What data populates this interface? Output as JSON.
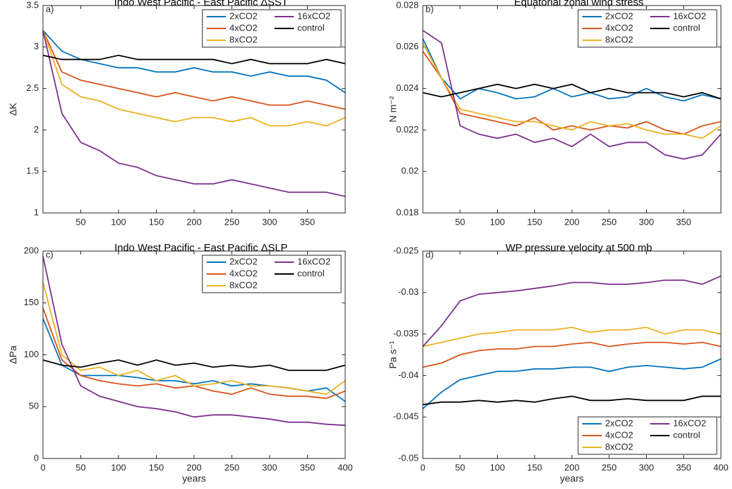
{
  "chart_data": [
    {
      "type": "line",
      "label": "a)",
      "title": "Indo West Pacific - East Pacific ΔSST",
      "ylabel": "ΔK",
      "x": [
        0,
        25,
        50,
        75,
        100,
        125,
        150,
        175,
        200,
        225,
        250,
        275,
        300,
        325,
        350,
        375,
        400
      ],
      "xlim": [
        0,
        400
      ],
      "xticks": [
        50,
        100,
        150,
        200,
        250,
        300,
        350
      ],
      "ylim": [
        1,
        3.5
      ],
      "yticks": [
        1,
        1.5,
        2,
        2.5,
        3,
        3.5
      ],
      "legend": "upper right",
      "series": [
        {
          "name": "2xCO2",
          "color": "#0072bd",
          "values": [
            3.2,
            2.95,
            2.85,
            2.8,
            2.75,
            2.75,
            2.7,
            2.7,
            2.75,
            2.7,
            2.7,
            2.65,
            2.7,
            2.65,
            2.65,
            2.6,
            2.45
          ]
        },
        {
          "name": "4xCO2",
          "color": "#d95319",
          "values": [
            3.2,
            2.7,
            2.6,
            2.55,
            2.5,
            2.45,
            2.4,
            2.45,
            2.4,
            2.35,
            2.4,
            2.35,
            2.3,
            2.3,
            2.35,
            2.3,
            2.25
          ]
        },
        {
          "name": "8xCO2",
          "color": "#edb120",
          "values": [
            3.2,
            2.55,
            2.4,
            2.35,
            2.25,
            2.2,
            2.15,
            2.1,
            2.15,
            2.15,
            2.1,
            2.15,
            2.05,
            2.05,
            2.1,
            2.05,
            2.15
          ]
        },
        {
          "name": "16xCO2",
          "color": "#7e2f8e",
          "values": [
            3.2,
            2.2,
            1.85,
            1.75,
            1.6,
            1.55,
            1.45,
            1.4,
            1.35,
            1.35,
            1.4,
            1.35,
            1.3,
            1.25,
            1.25,
            1.25,
            1.2
          ]
        },
        {
          "name": "control",
          "color": "#000000",
          "values": [
            2.9,
            2.85,
            2.85,
            2.85,
            2.9,
            2.85,
            2.85,
            2.85,
            2.85,
            2.85,
            2.8,
            2.85,
            2.8,
            2.8,
            2.8,
            2.85,
            2.8
          ]
        }
      ]
    },
    {
      "type": "line",
      "label": "b)",
      "title": "Equatorial zonal wind stress",
      "ylabel": "N m⁻²",
      "x": [
        0,
        25,
        50,
        75,
        100,
        125,
        150,
        175,
        200,
        225,
        250,
        275,
        300,
        325,
        350,
        375,
        400
      ],
      "xlim": [
        0,
        400
      ],
      "xticks": [
        50,
        100,
        150,
        200,
        250,
        300,
        350
      ],
      "ylim": [
        0.018,
        0.028
      ],
      "yticks": [
        0.018,
        0.02,
        0.022,
        0.024,
        0.026,
        0.028
      ],
      "legend": "upper right",
      "series": [
        {
          "name": "2xCO2",
          "color": "#0072bd",
          "values": [
            0.0264,
            0.0245,
            0.0235,
            0.024,
            0.0238,
            0.0235,
            0.0236,
            0.024,
            0.0236,
            0.0238,
            0.0235,
            0.0236,
            0.024,
            0.0236,
            0.0234,
            0.0237,
            0.0235
          ]
        },
        {
          "name": "4xCO2",
          "color": "#d95319",
          "values": [
            0.0258,
            0.0245,
            0.0228,
            0.0226,
            0.0224,
            0.0222,
            0.0226,
            0.022,
            0.0222,
            0.022,
            0.0222,
            0.0221,
            0.0224,
            0.022,
            0.0218,
            0.0222,
            0.0224
          ]
        },
        {
          "name": "8xCO2",
          "color": "#edb120",
          "values": [
            0.0262,
            0.0245,
            0.023,
            0.0228,
            0.0226,
            0.0224,
            0.0224,
            0.0222,
            0.022,
            0.0224,
            0.0222,
            0.0223,
            0.022,
            0.0218,
            0.0218,
            0.0216,
            0.0222
          ]
        },
        {
          "name": "16xCO2",
          "color": "#7e2f8e",
          "values": [
            0.0268,
            0.0262,
            0.0222,
            0.0218,
            0.0216,
            0.0218,
            0.0214,
            0.0216,
            0.0212,
            0.0218,
            0.0212,
            0.0214,
            0.0214,
            0.0208,
            0.0206,
            0.0208,
            0.0218
          ]
        },
        {
          "name": "control",
          "color": "#000000",
          "values": [
            0.0238,
            0.0236,
            0.0238,
            0.024,
            0.0242,
            0.024,
            0.0242,
            0.024,
            0.0242,
            0.0238,
            0.024,
            0.0238,
            0.0238,
            0.0238,
            0.0236,
            0.0238,
            0.0235
          ]
        }
      ]
    },
    {
      "type": "line",
      "label": "c)",
      "title": "Indo West Pacific - East Pacific ΔSLP",
      "ylabel": "ΔPa",
      "xlabel": "years",
      "x": [
        0,
        25,
        50,
        75,
        100,
        125,
        150,
        175,
        200,
        225,
        250,
        275,
        300,
        325,
        350,
        375,
        400
      ],
      "xlim": [
        0,
        400
      ],
      "xticks": [
        0,
        50,
        100,
        150,
        200,
        250,
        300,
        350,
        400
      ],
      "ylim": [
        0,
        200
      ],
      "yticks": [
        0,
        50,
        100,
        150,
        200
      ],
      "legend": "upper right",
      "series": [
        {
          "name": "2xCO2",
          "color": "#0072bd",
          "values": [
            135,
            90,
            80,
            80,
            80,
            78,
            75,
            75,
            72,
            75,
            70,
            72,
            70,
            68,
            65,
            68,
            55
          ]
        },
        {
          "name": "4xCO2",
          "color": "#d95319",
          "values": [
            145,
            95,
            80,
            75,
            72,
            70,
            72,
            68,
            70,
            65,
            62,
            68,
            62,
            60,
            60,
            58,
            65
          ]
        },
        {
          "name": "8xCO2",
          "color": "#edb120",
          "values": [
            170,
            100,
            85,
            88,
            80,
            85,
            75,
            80,
            70,
            72,
            75,
            70,
            70,
            68,
            65,
            62,
            75
          ]
        },
        {
          "name": "16xCO2",
          "color": "#7e2f8e",
          "values": [
            195,
            110,
            70,
            60,
            55,
            50,
            48,
            45,
            40,
            42,
            42,
            40,
            38,
            35,
            35,
            33,
            32
          ]
        },
        {
          "name": "control",
          "color": "#000000",
          "values": [
            95,
            90,
            88,
            92,
            95,
            90,
            95,
            90,
            92,
            88,
            90,
            88,
            90,
            85,
            85,
            85,
            90
          ]
        }
      ]
    },
    {
      "type": "line",
      "label": "d)",
      "title": "WP pressure velocity at 500 mb",
      "ylabel": "Pa s⁻¹",
      "xlabel": "years",
      "x": [
        0,
        25,
        50,
        75,
        100,
        125,
        150,
        175,
        200,
        225,
        250,
        275,
        300,
        325,
        350,
        375,
        400
      ],
      "xlim": [
        0,
        400
      ],
      "xticks": [
        0,
        50,
        100,
        150,
        200,
        250,
        300,
        350,
        400
      ],
      "ylim": [
        -0.05,
        -0.025
      ],
      "yticks": [
        -0.05,
        -0.045,
        -0.04,
        -0.035,
        -0.03,
        -0.025
      ],
      "legend": "lower right",
      "series": [
        {
          "name": "2xCO2",
          "color": "#0072bd",
          "values": [
            -0.044,
            -0.042,
            -0.0405,
            -0.04,
            -0.0395,
            -0.0395,
            -0.0392,
            -0.0392,
            -0.039,
            -0.039,
            -0.0395,
            -0.039,
            -0.0388,
            -0.039,
            -0.0392,
            -0.039,
            -0.038
          ]
        },
        {
          "name": "4xCO2",
          "color": "#d95319",
          "values": [
            -0.039,
            -0.0385,
            -0.0375,
            -0.037,
            -0.0368,
            -0.0368,
            -0.0365,
            -0.0365,
            -0.0362,
            -0.036,
            -0.0365,
            -0.0362,
            -0.036,
            -0.036,
            -0.0362,
            -0.036,
            -0.0365
          ]
        },
        {
          "name": "8xCO2",
          "color": "#edb120",
          "values": [
            -0.0365,
            -0.036,
            -0.0355,
            -0.035,
            -0.0348,
            -0.0345,
            -0.0345,
            -0.0345,
            -0.0342,
            -0.0348,
            -0.0345,
            -0.0345,
            -0.0342,
            -0.035,
            -0.0345,
            -0.0345,
            -0.035
          ]
        },
        {
          "name": "16xCO2",
          "color": "#7e2f8e",
          "values": [
            -0.0365,
            -0.034,
            -0.031,
            -0.0302,
            -0.03,
            -0.0298,
            -0.0295,
            -0.0292,
            -0.0288,
            -0.0288,
            -0.029,
            -0.029,
            -0.0288,
            -0.0285,
            -0.0285,
            -0.029,
            -0.028
          ]
        },
        {
          "name": "control",
          "color": "#000000",
          "values": [
            -0.0435,
            -0.0432,
            -0.0432,
            -0.043,
            -0.0432,
            -0.043,
            -0.0432,
            -0.0428,
            -0.0425,
            -0.043,
            -0.043,
            -0.0428,
            -0.043,
            -0.043,
            -0.043,
            -0.0425,
            -0.0425
          ]
        }
      ]
    }
  ]
}
